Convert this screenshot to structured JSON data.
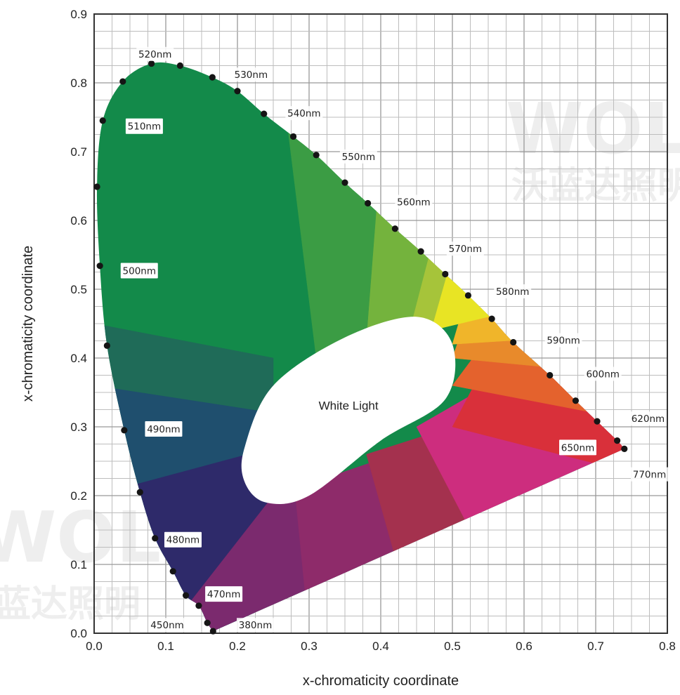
{
  "chart_data": {
    "type": "scatter",
    "title": "",
    "xlabel": "x-chromaticity coordinate",
    "ylabel": "x-chromaticity coordinate",
    "xlim": [
      0.0,
      0.8
    ],
    "ylim": [
      0.0,
      0.9
    ],
    "x_ticks": [
      "0.0",
      "0.1",
      "0.2",
      "0.3",
      "0.4",
      "0.5",
      "0.6",
      "0.7",
      "0.8"
    ],
    "y_ticks": [
      "0.0",
      "0.1",
      "0.2",
      "0.3",
      "0.4",
      "0.5",
      "0.6",
      "0.7",
      "0.8",
      "0.9"
    ],
    "grid": true,
    "center_label": "White Light",
    "series": [
      {
        "x": [
          0.166,
          0.158,
          0.146,
          0.128,
          0.11,
          0.085,
          0.064,
          0.042,
          0.018,
          0.008,
          0.004,
          0.012,
          0.04,
          0.08,
          0.12,
          0.165,
          0.2,
          0.237,
          0.278,
          0.31,
          0.35,
          0.382,
          0.42,
          0.456,
          0.49,
          0.522,
          0.555,
          0.585,
          0.636,
          0.672,
          0.702,
          0.73,
          0.74
        ],
        "y": [
          0.003,
          0.015,
          0.04,
          0.055,
          0.09,
          0.138,
          0.205,
          0.295,
          0.418,
          0.534,
          0.649,
          0.745,
          0.802,
          0.828,
          0.825,
          0.808,
          0.788,
          0.755,
          0.722,
          0.695,
          0.655,
          0.625,
          0.588,
          0.555,
          0.522,
          0.491,
          0.457,
          0.423,
          0.375,
          0.338,
          0.308,
          0.28,
          0.268
        ]
      }
    ],
    "wavelength_labels": [
      {
        "text": "380nm",
        "x": 0.225,
        "y": 0.012,
        "boxed": false
      },
      {
        "text": "450nm",
        "x": 0.102,
        "y": 0.012,
        "boxed": false
      },
      {
        "text": "470nm",
        "x": 0.181,
        "y": 0.057,
        "boxed": true
      },
      {
        "text": "480nm",
        "x": 0.124,
        "y": 0.136,
        "boxed": true
      },
      {
        "text": "490nm",
        "x": 0.097,
        "y": 0.297,
        "boxed": true
      },
      {
        "text": "500nm",
        "x": 0.063,
        "y": 0.527,
        "boxed": true
      },
      {
        "text": "510nm",
        "x": 0.07,
        "y": 0.737,
        "boxed": true
      },
      {
        "text": "520nm",
        "x": 0.085,
        "y": 0.842,
        "boxed": false
      },
      {
        "text": "530nm",
        "x": 0.219,
        "y": 0.812,
        "boxed": false
      },
      {
        "text": "540nm",
        "x": 0.293,
        "y": 0.756,
        "boxed": false
      },
      {
        "text": "550nm",
        "x": 0.369,
        "y": 0.693,
        "boxed": false
      },
      {
        "text": "560nm",
        "x": 0.446,
        "y": 0.627,
        "boxed": false
      },
      {
        "text": "570nm",
        "x": 0.518,
        "y": 0.559,
        "boxed": false
      },
      {
        "text": "580nm",
        "x": 0.584,
        "y": 0.497,
        "boxed": false
      },
      {
        "text": "590nm",
        "x": 0.655,
        "y": 0.426,
        "boxed": false
      },
      {
        "text": "600nm",
        "x": 0.71,
        "y": 0.377,
        "boxed": false
      },
      {
        "text": "620nm",
        "x": 0.773,
        "y": 0.312,
        "boxed": false
      },
      {
        "text": "650nm",
        "x": 0.675,
        "y": 0.27,
        "boxed": true
      },
      {
        "text": "770nm",
        "x": 0.775,
        "y": 0.231,
        "boxed": false
      }
    ],
    "region_colors": {
      "teal_dark": "#1f6b58",
      "green_dark": "#138a4a",
      "green_mid": "#3b9c44",
      "green_light": "#74b33d",
      "yellow_green": "#a6c43a",
      "yellow": "#e8e424",
      "orange_yellow": "#f0b52a",
      "orange": "#e88a2b",
      "orange_red": "#e4622d",
      "red": "#d9303a",
      "magenta": "#cd2d7e",
      "crimson": "#a4314e",
      "purple": "#7b2a6e",
      "indigo": "#2e2a6a",
      "blue_teal": "#1f4f6e"
    }
  },
  "watermark": {
    "logo_text": "WOLD",
    "cn_text": "沃蓝达照明"
  }
}
